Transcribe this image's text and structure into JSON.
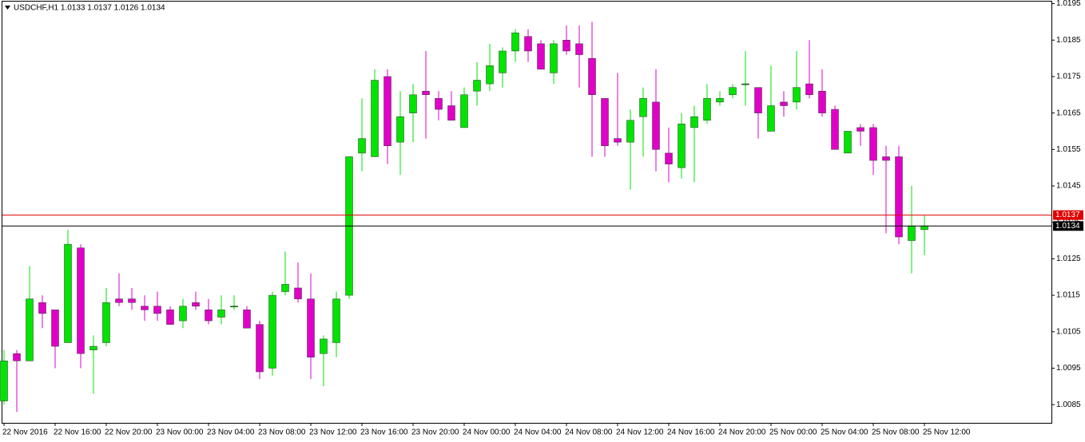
{
  "chart_data": {
    "type": "candlestick",
    "title": "USDCHF,H1  1.0133 1.0137 1.0126 1.0134",
    "categories": [
      "22 Nov 2016",
      null,
      null,
      null,
      "22 Nov 16:00",
      null,
      null,
      null,
      "22 Nov 20:00",
      null,
      null,
      null,
      "23 Nov 00:00",
      null,
      null,
      null,
      "23 Nov 04:00",
      null,
      null,
      null,
      "23 Nov 08:00",
      null,
      null,
      null,
      "23 Nov 12:00",
      null,
      null,
      null,
      "23 Nov 16:00",
      null,
      null,
      null,
      "23 Nov 20:00",
      null,
      null,
      null,
      "24 Nov 00:00",
      null,
      null,
      null,
      "24 Nov 04:00",
      null,
      null,
      null,
      "24 Nov 08:00",
      null,
      null,
      null,
      "24 Nov 12:00",
      null,
      null,
      null,
      "24 Nov 16:00",
      null,
      null,
      null,
      "24 Nov 20:00",
      null,
      null,
      null,
      "25 Nov 00:00",
      null,
      null,
      null,
      "25 Nov 04:00",
      null,
      null,
      null,
      "25 Nov 08:00",
      null,
      null,
      null,
      "25 Nov 12:00"
    ],
    "open": [
      1.0086,
      1.0099,
      1.0097,
      1.0113,
      1.0111,
      1.0102,
      1.0128,
      1.01,
      1.0102,
      1.0114,
      1.0114,
      1.0112,
      1.0112,
      1.0111,
      1.0108,
      1.0113,
      1.0111,
      1.0109,
      1.0112,
      1.0111,
      1.0107,
      1.0095,
      1.0116,
      1.0117,
      1.0114,
      1.0099,
      1.0102,
      1.0115,
      1.0154,
      1.0153,
      1.0175,
      1.0157,
      1.0165,
      1.0171,
      1.0169,
      1.0167,
      1.0161,
      1.0171,
      1.0173,
      1.0176,
      1.0182,
      1.0186,
      1.0184,
      1.0176,
      1.0185,
      1.0184,
      1.018,
      1.0169,
      1.0158,
      1.0157,
      1.0164,
      1.0168,
      1.0154,
      1.015,
      1.0161,
      1.0163,
      1.0168,
      1.017,
      1.0173,
      1.0172,
      1.016,
      1.0168,
      1.0168,
      1.0173,
      1.0171,
      1.0166,
      1.0154,
      1.0161,
      1.0161,
      1.0153,
      1.0153,
      1.013,
      1.0133
    ],
    "high": [
      1.01,
      1.01,
      1.0123,
      1.0115,
      1.0111,
      1.0133,
      1.0129,
      1.0104,
      1.0117,
      1.0121,
      1.0117,
      1.0115,
      1.0116,
      1.0112,
      1.0114,
      1.0116,
      1.0114,
      1.0115,
      1.0115,
      1.0112,
      1.0108,
      1.0116,
      1.0127,
      1.0124,
      1.0121,
      1.0104,
      1.0116,
      1.0153,
      1.0169,
      1.0177,
      1.0177,
      1.0171,
      1.0173,
      1.0182,
      1.0171,
      1.0171,
      1.0172,
      1.0179,
      1.0184,
      1.0183,
      1.0188,
      1.0188,
      1.0185,
      1.0185,
      1.0189,
      1.0189,
      1.019,
      1.0169,
      1.0176,
      1.0166,
      1.0172,
      1.0177,
      1.0161,
      1.0165,
      1.0167,
      1.0173,
      1.0171,
      1.0173,
      1.0182,
      1.0172,
      1.0178,
      1.0171,
      1.0182,
      1.0185,
      1.0177,
      1.0167,
      1.016,
      1.0162,
      1.0162,
      1.0156,
      1.0156,
      1.0145,
      1.0137
    ],
    "low": [
      1.0085,
      1.0083,
      1.0097,
      1.0106,
      1.0095,
      1.0102,
      1.0095,
      1.0088,
      1.0101,
      1.0112,
      1.0111,
      1.0108,
      1.0108,
      1.0107,
      1.0106,
      1.0111,
      1.0107,
      1.0107,
      1.0111,
      1.0106,
      1.0092,
      1.0093,
      1.0115,
      1.0113,
      1.0092,
      1.009,
      1.0098,
      1.0114,
      1.0149,
      1.0153,
      1.0151,
      1.0148,
      1.0157,
      1.0158,
      1.0163,
      1.0163,
      1.0161,
      1.0167,
      1.0171,
      1.0172,
      1.0179,
      1.0179,
      1.0177,
      1.0173,
      1.0181,
      1.0172,
      1.0153,
      1.0153,
      1.0156,
      1.0144,
      1.0153,
      1.0149,
      1.0146,
      1.0147,
      1.0146,
      1.0162,
      1.0167,
      1.0169,
      1.0167,
      1.0158,
      1.016,
      1.0164,
      1.0166,
      1.0169,
      1.0164,
      1.0155,
      1.0154,
      1.0156,
      1.0148,
      1.0132,
      1.0129,
      1.0121,
      1.0126
    ],
    "close": [
      1.0097,
      1.0097,
      1.0114,
      1.011,
      1.0101,
      1.0129,
      1.0099,
      1.0101,
      1.0113,
      1.0113,
      1.0113,
      1.0111,
      1.011,
      1.0107,
      1.0112,
      1.0112,
      1.0108,
      1.0111,
      1.0112,
      1.0106,
      1.0094,
      1.0115,
      1.0118,
      1.0114,
      1.0098,
      1.0103,
      1.0114,
      1.0153,
      1.0158,
      1.0174,
      1.0156,
      1.0164,
      1.017,
      1.017,
      1.0166,
      1.0163,
      1.017,
      1.0174,
      1.0178,
      1.0182,
      1.0187,
      1.0182,
      1.0177,
      1.0184,
      1.0182,
      1.0181,
      1.017,
      1.0156,
      1.0157,
      1.0163,
      1.0169,
      1.0155,
      1.0151,
      1.0162,
      1.0164,
      1.0169,
      1.0169,
      1.0172,
      1.0173,
      1.0165,
      1.0167,
      1.0167,
      1.0172,
      1.017,
      1.0165,
      1.0155,
      1.016,
      1.016,
      1.0152,
      1.0152,
      1.0131,
      1.0134,
      1.0134
    ],
    "up_color": "#00e400",
    "down_color": "#e000c8",
    "ylim": [
      1.008,
      1.0196
    ],
    "yticks": [
      1.0195,
      1.0185,
      1.0175,
      1.0165,
      1.0155,
      1.0145,
      1.0135,
      1.0125,
      1.0115,
      1.0105,
      1.0095,
      1.0085
    ],
    "ask": 1.0137,
    "ask_color": "#e00000",
    "bid": 1.0134,
    "bid_color": "#000000"
  }
}
